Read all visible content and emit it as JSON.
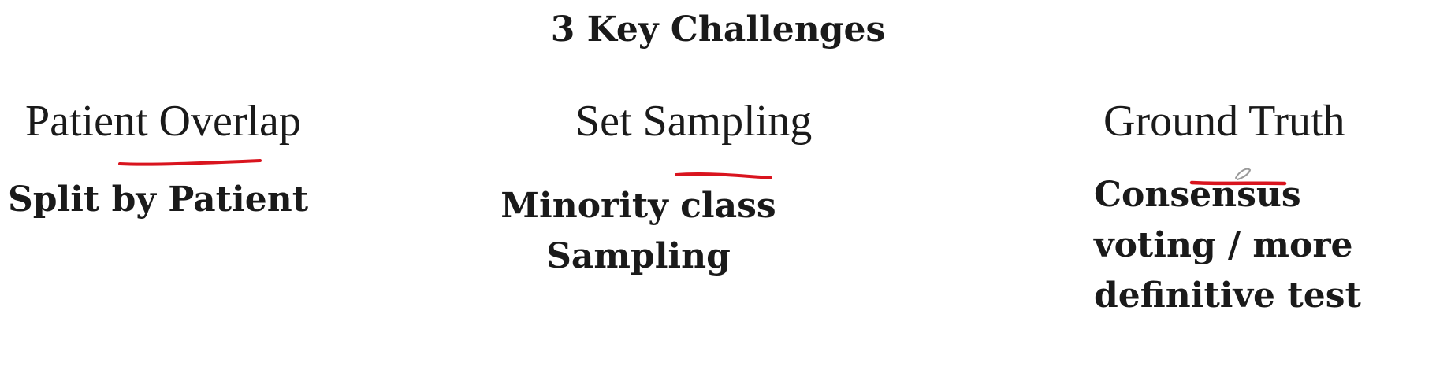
{
  "title": "3 Key Challenges",
  "challenges": [
    {
      "heading": "Patient Overlap",
      "solution_lines": [
        "Split by Patient"
      ]
    },
    {
      "heading": "Set Sampling",
      "solution_lines": [
        "Minority class",
        "Sampling"
      ]
    },
    {
      "heading": "Ground Truth",
      "solution_lines": [
        "Consensus",
        "voting / more",
        "definitive test"
      ]
    }
  ],
  "annotation_color": "#d9141e"
}
